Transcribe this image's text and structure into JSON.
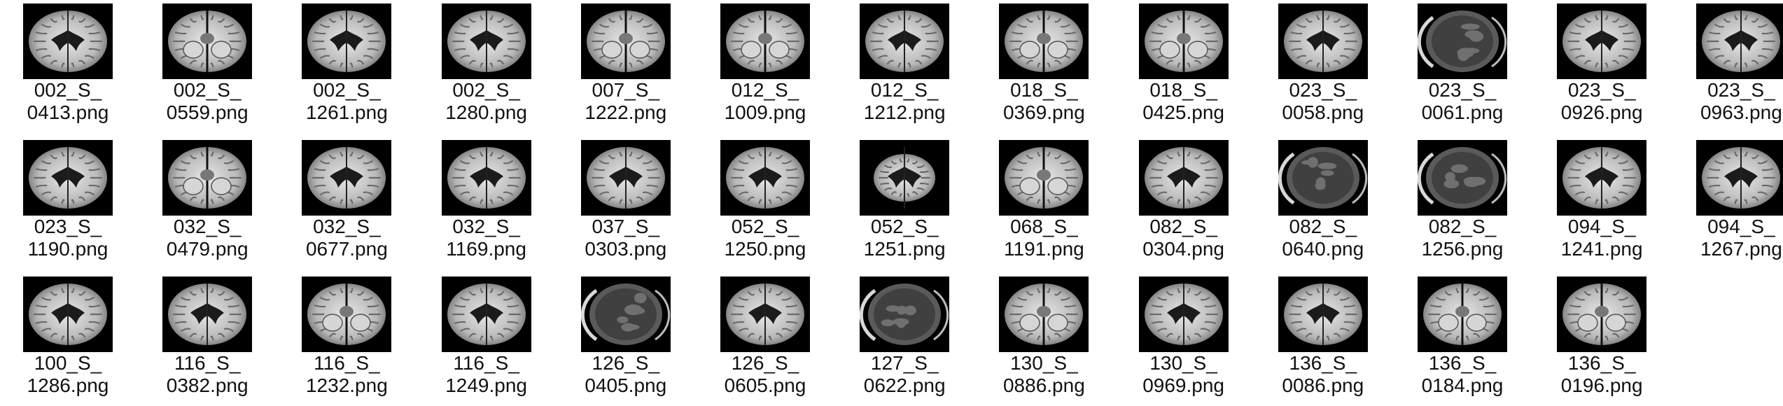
{
  "files": [
    {
      "line1": "002_S_",
      "line2": "0413.png",
      "variant": "axial-ventricles"
    },
    {
      "line1": "002_S_",
      "line2": "0559.png",
      "variant": "axial-cerebellum"
    },
    {
      "line1": "002_S_",
      "line2": "1261.png",
      "variant": "axial-ventricles"
    },
    {
      "line1": "002_S_",
      "line2": "1280.png",
      "variant": "axial-ventricles"
    },
    {
      "line1": "007_S_",
      "line2": "1222.png",
      "variant": "axial-cerebellum"
    },
    {
      "line1": "012_S_",
      "line2": "1009.png",
      "variant": "axial-cerebellum"
    },
    {
      "line1": "012_S_",
      "line2": "1212.png",
      "variant": "axial-ventricles"
    },
    {
      "line1": "018_S_",
      "line2": "0369.png",
      "variant": "axial-cerebellum"
    },
    {
      "line1": "018_S_",
      "line2": "0425.png",
      "variant": "axial-cerebellum"
    },
    {
      "line1": "023_S_",
      "line2": "0058.png",
      "variant": "axial-ventricles"
    },
    {
      "line1": "023_S_",
      "line2": "0061.png",
      "variant": "skull-dark"
    },
    {
      "line1": "023_S_",
      "line2": "0926.png",
      "variant": "axial-ventricles"
    },
    {
      "line1": "023_S_",
      "line2": "0963.png",
      "variant": "axial-ventricles"
    },
    {
      "line1": "023_S_",
      "line2": "1190.png",
      "variant": "axial-ventricles"
    },
    {
      "line1": "032_S_",
      "line2": "0479.png",
      "variant": "axial-cerebellum"
    },
    {
      "line1": "032_S_",
      "line2": "0677.png",
      "variant": "axial-ventricles"
    },
    {
      "line1": "032_S_",
      "line2": "1169.png",
      "variant": "axial-ventricles"
    },
    {
      "line1": "037_S_",
      "line2": "0303.png",
      "variant": "axial-ventricles"
    },
    {
      "line1": "052_S_",
      "line2": "1250.png",
      "variant": "axial-ventricles"
    },
    {
      "line1": "052_S_",
      "line2": "1251.png",
      "variant": "axial-small"
    },
    {
      "line1": "068_S_",
      "line2": "1191.png",
      "variant": "axial-cerebellum"
    },
    {
      "line1": "082_S_",
      "line2": "0304.png",
      "variant": "axial-ventricles"
    },
    {
      "line1": "082_S_",
      "line2": "0640.png",
      "variant": "skull-dark"
    },
    {
      "line1": "082_S_",
      "line2": "1256.png",
      "variant": "skull-dark"
    },
    {
      "line1": "094_S_",
      "line2": "1241.png",
      "variant": "axial-ventricles"
    },
    {
      "line1": "094_S_",
      "line2": "1267.png",
      "variant": "axial-ventricles"
    },
    {
      "line1": "100_S_",
      "line2": "1286.png",
      "variant": "axial-ventricles"
    },
    {
      "line1": "116_S_",
      "line2": "0382.png",
      "variant": "axial-ventricles"
    },
    {
      "line1": "116_S_",
      "line2": "1232.png",
      "variant": "axial-cerebellum"
    },
    {
      "line1": "116_S_",
      "line2": "1249.png",
      "variant": "axial-ventricles"
    },
    {
      "line1": "126_S_",
      "line2": "0405.png",
      "variant": "skull-dark"
    },
    {
      "line1": "126_S_",
      "line2": "0605.png",
      "variant": "axial-ventricles"
    },
    {
      "line1": "127_S_",
      "line2": "0622.png",
      "variant": "skull-dark"
    },
    {
      "line1": "130_S_",
      "line2": "0886.png",
      "variant": "axial-cerebellum"
    },
    {
      "line1": "130_S_",
      "line2": "0969.png",
      "variant": "axial-ventricles"
    },
    {
      "line1": "136_S_",
      "line2": "0086.png",
      "variant": "axial-ventricles"
    },
    {
      "line1": "136_S_",
      "line2": "0184.png",
      "variant": "axial-cerebellum"
    },
    {
      "line1": "136_S_",
      "line2": "0196.png",
      "variant": "axial-cerebellum"
    }
  ]
}
